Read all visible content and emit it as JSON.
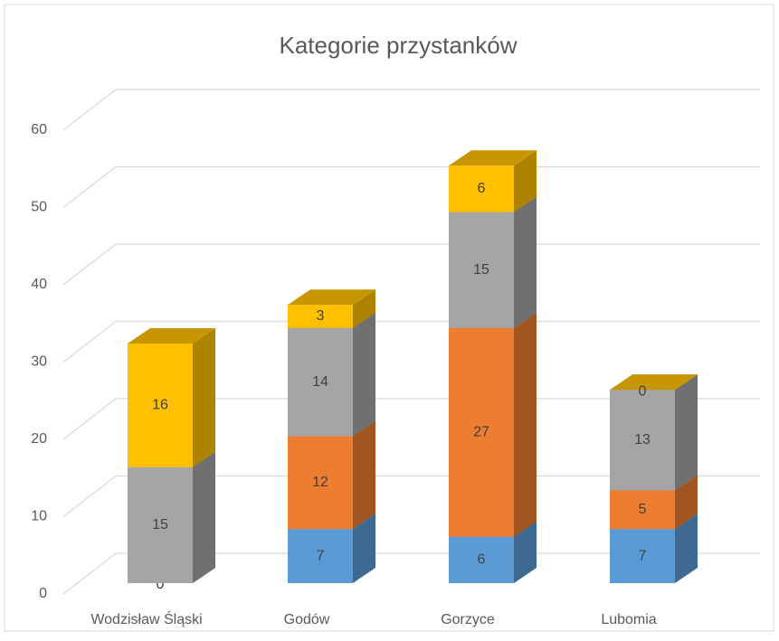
{
  "chart_data": {
    "type": "bar3d_stacked",
    "title": "Kategorie przystanków",
    "categories": [
      "Wodzisław Śląski",
      "Godów",
      "Gorzyce",
      "Lubomia"
    ],
    "series": [
      {
        "color": "#5b9bd5",
        "values": [
          0,
          7,
          6,
          7
        ]
      },
      {
        "color": "#ed7d31",
        "values": [
          null,
          12,
          27,
          5
        ]
      },
      {
        "color": "#a5a5a5",
        "values": [
          15,
          14,
          15,
          13
        ]
      },
      {
        "color": "#ffc000",
        "values": [
          16,
          3,
          6,
          0
        ]
      }
    ],
    "ylim": [
      0,
      60
    ],
    "yticks": [
      0,
      10,
      20,
      30,
      40,
      50,
      60
    ],
    "grid": true
  }
}
